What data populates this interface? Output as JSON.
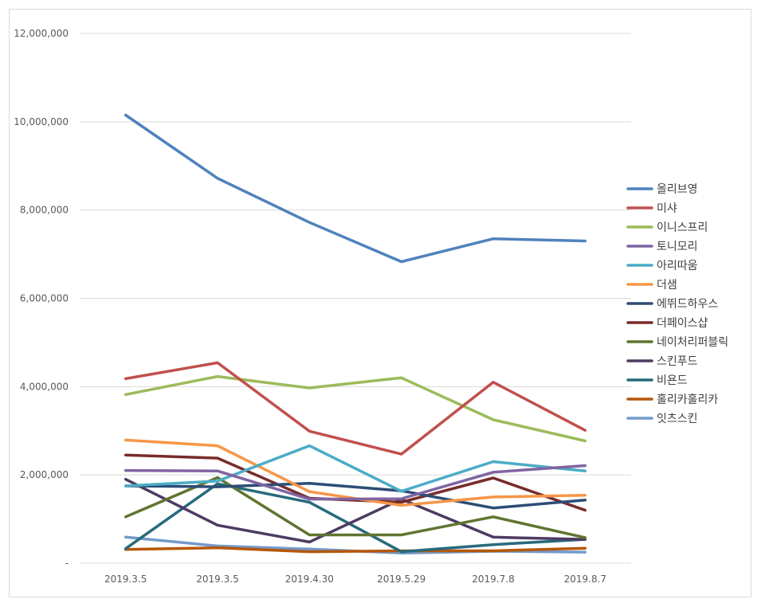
{
  "chart_data": {
    "type": "line",
    "categories": [
      "2019.3.5",
      "2019.3.5",
      "2019.4.30",
      "2019.5.29",
      "2019.7.8",
      "2019.8.7"
    ],
    "ylim": [
      0,
      12000000
    ],
    "y_ticks": [
      0,
      2000000,
      4000000,
      6000000,
      8000000,
      10000000,
      12000000
    ],
    "y_tick_labels": [
      "-",
      "2,000,000",
      "4,000,000",
      "6,000,000",
      "8,000,000",
      "10,000,000",
      "12,000,000"
    ],
    "grid": true,
    "legend_position": "right",
    "series": [
      {
        "name": "올리브영",
        "color": "#4f81bd",
        "values": [
          10150000,
          8720000,
          7720000,
          6830000,
          7350000,
          7300000
        ]
      },
      {
        "name": "미샤",
        "color": "#c0504d",
        "values": [
          4180000,
          4540000,
          2990000,
          2470000,
          4100000,
          3010000
        ]
      },
      {
        "name": "이니스프리",
        "color": "#9bbb59",
        "values": [
          3820000,
          4230000,
          3970000,
          4200000,
          3250000,
          2770000
        ]
      },
      {
        "name": "토니모리",
        "color": "#8064a2",
        "values": [
          2100000,
          2090000,
          1450000,
          1460000,
          2060000,
          2210000
        ]
      },
      {
        "name": "아리따움",
        "color": "#4bacc6",
        "values": [
          1750000,
          1860000,
          2660000,
          1630000,
          2300000,
          2090000
        ]
      },
      {
        "name": "더샘",
        "color": "#f79646",
        "values": [
          2790000,
          2660000,
          1620000,
          1310000,
          1500000,
          1540000
        ]
      },
      {
        "name": "에뛰드하우스",
        "color": "#2c4d75",
        "values": [
          1750000,
          1730000,
          1810000,
          1640000,
          1250000,
          1430000
        ]
      },
      {
        "name": "더페이스샵",
        "color": "#772c2a",
        "values": [
          2450000,
          2380000,
          1470000,
          1380000,
          1930000,
          1200000
        ]
      },
      {
        "name": "네이처리퍼블릭",
        "color": "#5f7530",
        "values": [
          1050000,
          1940000,
          640000,
          640000,
          1050000,
          580000
        ]
      },
      {
        "name": "스킨푸드",
        "color": "#4d3b62",
        "values": [
          1900000,
          860000,
          480000,
          1450000,
          590000,
          540000
        ]
      },
      {
        "name": "비욘드",
        "color": "#276a7c",
        "values": [
          330000,
          1800000,
          1380000,
          260000,
          420000,
          540000
        ]
      },
      {
        "name": "홀리카홀리카",
        "color": "#b65708",
        "values": [
          310000,
          350000,
          260000,
          280000,
          280000,
          340000
        ]
      },
      {
        "name": "잇츠스킨",
        "color": "#729aca",
        "values": [
          590000,
          390000,
          320000,
          230000,
          270000,
          250000
        ]
      }
    ]
  }
}
